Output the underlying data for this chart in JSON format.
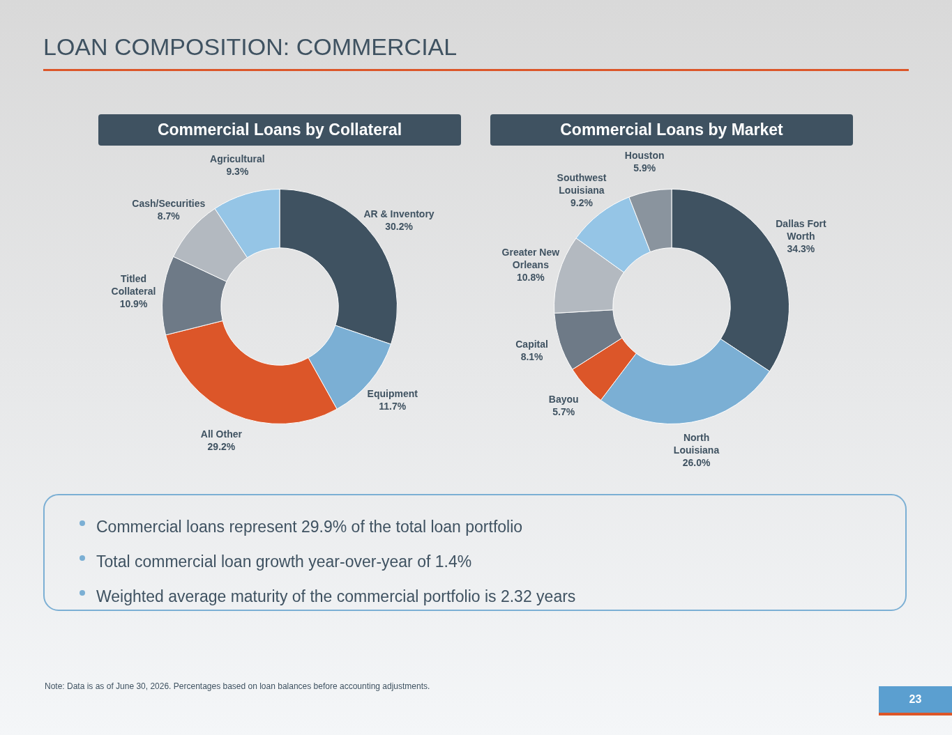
{
  "chart_data": [
    {
      "type": "other",
      "title": "LOAN COMPOSITION: COMMERCIAL"
    },
    {
      "type": "donut",
      "title": "Commercial Loans by Collateral",
      "legend": false,
      "categories": [
        "AR & Inventory",
        "Equipment",
        "All Other",
        "Titled Collateral",
        "Cash/Securities",
        "Agricultural"
      ],
      "values": [
        30.2,
        11.7,
        29.2,
        10.9,
        8.7,
        9.3
      ],
      "value_labels": [
        "30.2%",
        "11.7%",
        "29.2%",
        "10.9%",
        "8.7%",
        "9.3%"
      ],
      "colors": [
        "#3f5261",
        "#7bafd4",
        "#dc5629",
        "#6e7a87",
        "#b3b9c0",
        "#95c5e6"
      ]
    },
    {
      "type": "donut",
      "title": "Commercial Loans by Market",
      "legend": false,
      "categories": [
        "Dallas Fort Worth",
        "North Louisiana",
        "Bayou",
        "Capital",
        "Greater New Orleans",
        "Southwest Louisiana",
        "Houston"
      ],
      "values": [
        34.3,
        26.0,
        5.7,
        8.1,
        10.8,
        9.2,
        5.9
      ],
      "value_labels": [
        "34.3%",
        "26.0%",
        "5.7%",
        "8.1%",
        "10.8%",
        "9.2%",
        "5.9%"
      ],
      "colors": [
        "#3f5261",
        "#7bafd4",
        "#dc5629",
        "#6e7a87",
        "#b3b9c0",
        "#95c5e6",
        "#8a949e"
      ]
    },
    {
      "type": "other",
      "annotations": [
        "Commercial loans represent 29.9% of the total loan portfolio",
        "Total commercial loan growth year-over-year of 1.4%",
        "Weighted average maturity of the commercial portfolio is 2.32 years"
      ]
    },
    {
      "type": "other",
      "annotations": [
        "Note: Data is as of June 30, 2026. Percentages based on loan balances before accounting adjustments.",
        "23"
      ]
    }
  ]
}
